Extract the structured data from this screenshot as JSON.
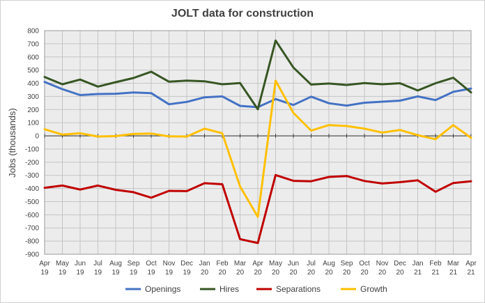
{
  "chart_data": {
    "type": "line",
    "title": "JOLT data for construction",
    "ylabel": "Jobs (thousands)",
    "xlabel": "",
    "ylim": [
      -900,
      800
    ],
    "ytick_step": 100,
    "grid": true,
    "legend_position": "bottom",
    "x": [
      {
        "month": "Apr",
        "year": "19"
      },
      {
        "month": "May",
        "year": "19"
      },
      {
        "month": "Jun",
        "year": "19"
      },
      {
        "month": "Jul",
        "year": "19"
      },
      {
        "month": "Aug",
        "year": "19"
      },
      {
        "month": "Sep",
        "year": "19"
      },
      {
        "month": "Oct",
        "year": "19"
      },
      {
        "month": "Nov",
        "year": "19"
      },
      {
        "month": "Dec",
        "year": "19"
      },
      {
        "month": "Jan",
        "year": "20"
      },
      {
        "month": "Feb",
        "year": "20"
      },
      {
        "month": "Mar",
        "year": "20"
      },
      {
        "month": "Apr",
        "year": "20"
      },
      {
        "month": "May",
        "year": "20"
      },
      {
        "month": "Jun",
        "year": "20"
      },
      {
        "month": "Jul",
        "year": "20"
      },
      {
        "month": "Aug",
        "year": "20"
      },
      {
        "month": "Sep",
        "year": "20"
      },
      {
        "month": "Oct",
        "year": "20"
      },
      {
        "month": "Nov",
        "year": "20"
      },
      {
        "month": "Dec",
        "year": "20"
      },
      {
        "month": "Jan",
        "year": "21"
      },
      {
        "month": "Feb",
        "year": "21"
      },
      {
        "month": "Mar",
        "year": "21"
      },
      {
        "month": "Apr",
        "year": "21"
      }
    ],
    "series": [
      {
        "name": "Openings",
        "color": "#4472C4",
        "values": [
          410,
          355,
          310,
          318,
          320,
          330,
          325,
          240,
          258,
          293,
          300,
          228,
          218,
          280,
          235,
          298,
          248,
          230,
          252,
          260,
          268,
          300,
          272,
          335,
          360
        ]
      },
      {
        "name": "Hires",
        "color": "#375623",
        "values": [
          448,
          392,
          428,
          375,
          408,
          440,
          488,
          412,
          420,
          415,
          392,
          402,
          202,
          725,
          520,
          390,
          398,
          387,
          402,
          392,
          400,
          345,
          400,
          442,
          330
        ]
      },
      {
        "name": "Separations",
        "color": "#C00000",
        "values": [
          -395,
          -378,
          -408,
          -378,
          -410,
          -428,
          -470,
          -418,
          -420,
          -360,
          -368,
          -785,
          -815,
          -298,
          -342,
          -345,
          -312,
          -305,
          -343,
          -362,
          -352,
          -338,
          -425,
          -358,
          -345
        ]
      },
      {
        "name": "Growth",
        "color": "#FFC000",
        "values": [
          50,
          10,
          20,
          -5,
          -2,
          15,
          18,
          -4,
          -5,
          55,
          20,
          -385,
          -615,
          420,
          175,
          40,
          82,
          75,
          55,
          25,
          45,
          5,
          -25,
          82,
          -15
        ]
      }
    ]
  }
}
